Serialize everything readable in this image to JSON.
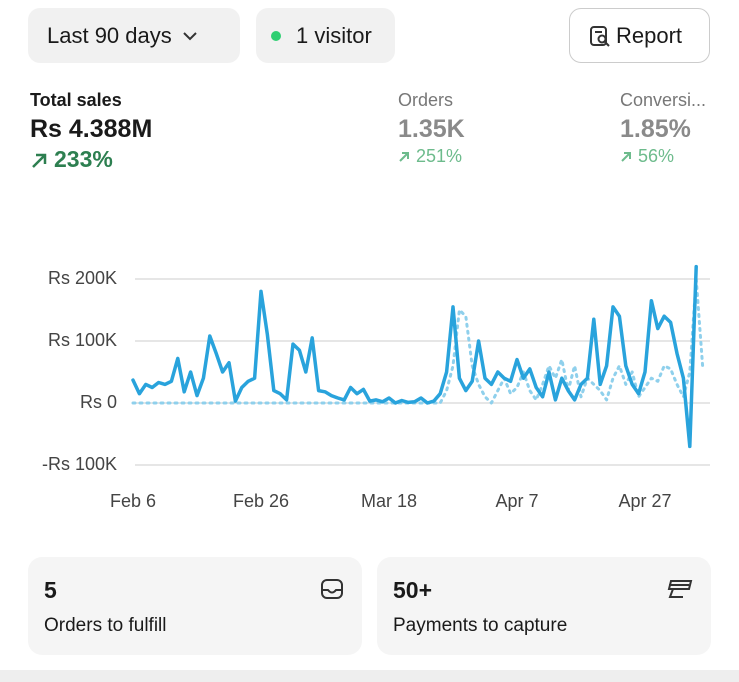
{
  "toolbar": {
    "date_filter": "Last 90 days",
    "visitors": "1 visitor",
    "report": "Report"
  },
  "metrics": [
    {
      "label": "Total sales",
      "value": "Rs 4.388M",
      "change": "233%"
    },
    {
      "label": "Orders",
      "value": "1.35K",
      "change": "251%"
    },
    {
      "label": "Conversi...",
      "value": "1.85%",
      "change": "56%"
    }
  ],
  "chart_data": {
    "type": "line",
    "categories": [
      "Feb 6",
      null,
      null,
      null,
      null,
      null,
      null,
      null,
      null,
      null,
      null,
      null,
      null,
      null,
      null,
      null,
      null,
      null,
      null,
      null,
      "Feb 26",
      null,
      null,
      null,
      null,
      null,
      null,
      null,
      null,
      null,
      null,
      null,
      null,
      null,
      null,
      null,
      null,
      null,
      null,
      null,
      "Mar 18",
      null,
      null,
      null,
      null,
      null,
      null,
      null,
      null,
      null,
      null,
      null,
      null,
      null,
      null,
      null,
      null,
      null,
      null,
      null,
      "Apr 7",
      null,
      null,
      null,
      null,
      null,
      null,
      null,
      null,
      null,
      null,
      null,
      null,
      null,
      null,
      null,
      null,
      null,
      null,
      null,
      "Apr 27",
      null,
      null,
      null,
      null,
      null,
      null,
      null,
      null,
      null
    ],
    "series": [
      {
        "color": "#29a3dc",
        "values": [
          37000,
          15000,
          30000,
          25000,
          33000,
          30000,
          35000,
          72000,
          18000,
          50000,
          12000,
          40000,
          108000,
          80000,
          50000,
          65000,
          3000,
          25000,
          35000,
          40000,
          180000,
          110000,
          20000,
          15000,
          5000,
          95000,
          85000,
          50000,
          105000,
          20000,
          18000,
          12000,
          8000,
          5000,
          25000,
          15000,
          22000,
          3000,
          5000,
          2000,
          8000,
          0,
          4000,
          1000,
          2000,
          8000,
          0,
          3000,
          15000,
          50000,
          155000,
          40000,
          20000,
          35000,
          100000,
          40000,
          30000,
          50000,
          40000,
          35000,
          70000,
          40000,
          55000,
          25000,
          10000,
          50000,
          5000,
          40000,
          20000,
          5000,
          30000,
          40000,
          135000,
          30000,
          60000,
          155000,
          140000,
          60000,
          30000,
          15000,
          50000,
          165000,
          120000,
          140000,
          130000,
          80000,
          40000,
          -70000,
          220000,
          null
        ]
      },
      {
        "color": "#8fd0ec",
        "dashed": true,
        "values": [
          0,
          0,
          0,
          0,
          0,
          0,
          0,
          0,
          0,
          0,
          0,
          0,
          0,
          0,
          0,
          0,
          0,
          0,
          0,
          0,
          0,
          0,
          0,
          0,
          0,
          0,
          0,
          0,
          0,
          0,
          0,
          0,
          0,
          0,
          0,
          0,
          0,
          0,
          0,
          0,
          0,
          0,
          0,
          0,
          0,
          0,
          0,
          0,
          0,
          20000,
          60000,
          150000,
          140000,
          60000,
          30000,
          10000,
          0,
          20000,
          40000,
          15000,
          25000,
          50000,
          20000,
          5000,
          30000,
          60000,
          40000,
          70000,
          20000,
          60000,
          10000,
          40000,
          30000,
          20000,
          5000,
          40000,
          60000,
          30000,
          50000,
          10000,
          25000,
          40000,
          35000,
          60000,
          55000,
          30000,
          10000,
          50000,
          200000,
          60000
        ]
      }
    ],
    "ylim": [
      -100000,
      225000
    ],
    "yticks": [
      {
        "value": 200000,
        "label": "Rs 200K"
      },
      {
        "value": 100000,
        "label": "Rs 100K"
      },
      {
        "value": 0,
        "label": "Rs 0"
      },
      {
        "value": -100000,
        "label": "-Rs 100K"
      }
    ],
    "grid": true
  },
  "cards": [
    {
      "value": "5",
      "label": "Orders to fulfill"
    },
    {
      "value": "50+",
      "label": "Payments to capture"
    }
  ]
}
